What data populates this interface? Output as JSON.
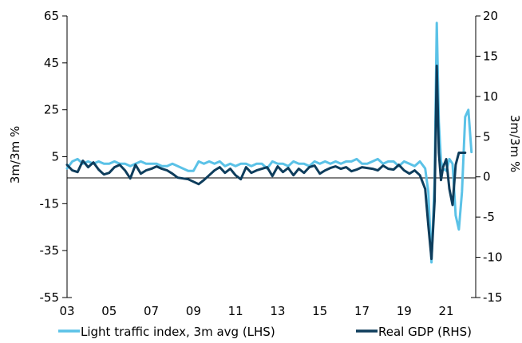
{
  "chart_data": {
    "type": "line",
    "title": "",
    "xlabel": "",
    "ylabel_left": "3m/3m %",
    "ylabel_right": "3m/3m %",
    "ylim_left": [
      -55,
      65
    ],
    "ylim_right": [
      -15,
      20
    ],
    "xlim": [
      2003,
      2022.4
    ],
    "grid": false,
    "legend_placement": "bottom",
    "x_tick_labels": [
      "03",
      "05",
      "07",
      "09",
      "11",
      "13",
      "15",
      "17",
      "19",
      "21"
    ],
    "x_tick_values": [
      2003,
      2005,
      2007,
      2009,
      2011,
      2013,
      2015,
      2017,
      2019,
      2021
    ],
    "y_left_ticks": [
      65,
      45,
      25,
      5,
      -15,
      -35,
      -55
    ],
    "y_right_ticks": [
      20,
      15,
      10,
      5,
      0,
      -5,
      -10,
      -15
    ],
    "series": [
      {
        "name": "Light traffic index, 3m avg (LHS)",
        "axis": "left",
        "color": "#5bc2e7",
        "x": [
          2003.0,
          2003.25,
          2003.5,
          2003.75,
          2004.0,
          2004.25,
          2004.5,
          2004.75,
          2005.0,
          2005.25,
          2005.5,
          2005.75,
          2006.0,
          2006.25,
          2006.5,
          2006.75,
          2007.0,
          2007.25,
          2007.5,
          2007.75,
          2008.0,
          2008.25,
          2008.5,
          2008.75,
          2009.0,
          2009.25,
          2009.5,
          2009.75,
          2010.0,
          2010.25,
          2010.5,
          2010.75,
          2011.0,
          2011.25,
          2011.5,
          2011.75,
          2012.0,
          2012.25,
          2012.5,
          2012.75,
          2013.0,
          2013.25,
          2013.5,
          2013.75,
          2014.0,
          2014.25,
          2014.5,
          2014.75,
          2015.0,
          2015.25,
          2015.5,
          2015.75,
          2016.0,
          2016.25,
          2016.5,
          2016.75,
          2017.0,
          2017.25,
          2017.5,
          2017.75,
          2018.0,
          2018.25,
          2018.5,
          2018.75,
          2019.0,
          2019.25,
          2019.5,
          2019.75,
          2020.0,
          2020.15,
          2020.3,
          2020.45,
          2020.55,
          2020.65,
          2020.75,
          2020.85,
          2021.0,
          2021.15,
          2021.3,
          2021.45,
          2021.6,
          2021.75,
          2021.9,
          2022.05,
          2022.2
        ],
        "values": [
          0,
          3,
          4,
          2,
          3,
          2,
          3,
          2,
          2,
          3,
          2,
          2,
          1,
          2,
          3,
          2,
          2,
          2,
          1,
          1,
          2,
          1,
          0,
          -1,
          -1,
          3,
          2,
          3,
          2,
          3,
          1,
          2,
          1,
          2,
          2,
          1,
          2,
          2,
          0,
          3,
          2,
          2,
          1,
          3,
          2,
          2,
          1,
          3,
          2,
          3,
          2,
          3,
          2,
          3,
          3,
          4,
          2,
          2,
          3,
          4,
          2,
          3,
          3,
          1,
          3,
          2,
          1,
          3,
          0,
          -10,
          -40,
          -5,
          62,
          20,
          3,
          0,
          -1,
          4,
          2,
          -20,
          -26,
          -10,
          22,
          25,
          7
        ]
      },
      {
        "name": "Real GDP (RHS)",
        "axis": "right",
        "color": "#0e3d5c",
        "x": [
          2003.0,
          2003.25,
          2003.5,
          2003.75,
          2004.0,
          2004.25,
          2004.5,
          2004.75,
          2005.0,
          2005.25,
          2005.5,
          2005.75,
          2006.0,
          2006.25,
          2006.5,
          2006.75,
          2007.0,
          2007.25,
          2007.5,
          2007.75,
          2008.0,
          2008.25,
          2008.5,
          2008.75,
          2009.0,
          2009.25,
          2009.5,
          2009.75,
          2010.0,
          2010.25,
          2010.5,
          2010.75,
          2011.0,
          2011.25,
          2011.5,
          2011.75,
          2012.0,
          2012.25,
          2012.5,
          2012.75,
          2013.0,
          2013.25,
          2013.5,
          2013.75,
          2014.0,
          2014.25,
          2014.5,
          2014.75,
          2015.0,
          2015.25,
          2015.5,
          2015.75,
          2016.0,
          2016.25,
          2016.5,
          2016.75,
          2017.0,
          2017.25,
          2017.5,
          2017.75,
          2018.0,
          2018.25,
          2018.5,
          2018.75,
          2019.0,
          2019.25,
          2019.5,
          2019.75,
          2020.0,
          2020.15,
          2020.3,
          2020.45,
          2020.55,
          2020.65,
          2020.75,
          2020.85,
          2021.0,
          2021.15,
          2021.3,
          2021.45,
          2021.6,
          2021.75,
          2021.9
        ],
        "values": [
          1.5,
          0.8,
          0.6,
          2.0,
          1.2,
          1.8,
          0.9,
          0.3,
          0.5,
          1.2,
          1.5,
          0.8,
          -0.2,
          1.5,
          0.4,
          0.8,
          1.0,
          1.3,
          1.0,
          0.8,
          0.4,
          -0.1,
          -0.2,
          -0.3,
          -0.6,
          -0.9,
          -0.4,
          0.2,
          0.8,
          1.2,
          0.5,
          1.0,
          0.2,
          -0.3,
          1.2,
          0.5,
          0.8,
          1.0,
          1.2,
          0.1,
          1.3,
          0.6,
          1.1,
          0.2,
          1.0,
          0.5,
          1.2,
          1.4,
          0.4,
          0.8,
          1.1,
          1.3,
          1.0,
          1.2,
          0.7,
          0.9,
          1.2,
          1.1,
          1.0,
          0.8,
          1.4,
          1.0,
          0.9,
          1.5,
          0.8,
          0.4,
          0.8,
          0.2,
          -1.5,
          -6,
          -10.2,
          -3,
          13.8,
          3,
          -0.4,
          1.2,
          2.2,
          -1.5,
          -3.5,
          1.5,
          3.0,
          3.0,
          3.0
        ]
      }
    ]
  }
}
